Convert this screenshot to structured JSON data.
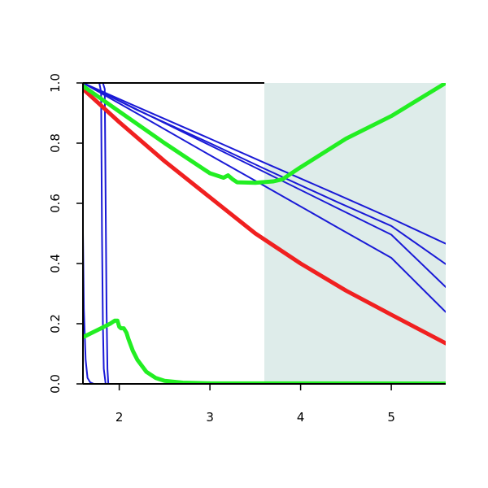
{
  "chart_data": {
    "type": "line",
    "title": "",
    "xlabel": "",
    "ylabel": "",
    "xlim": [
      1.6,
      5.6
    ],
    "ylim": [
      0,
      1
    ],
    "grid": false,
    "x_ticks": [
      2,
      3,
      4,
      5
    ],
    "x_tick_labels": [
      "2",
      "3",
      "4",
      "5"
    ],
    "y_ticks": [
      0,
      0.2,
      0.4,
      0.6,
      0.8,
      1
    ],
    "y_tick_labels": [
      "0.0",
      "0.2",
      "0.4",
      "0.6",
      "0.8",
      "1.0"
    ],
    "shaded_region": {
      "x_start": 3.6,
      "x_end": 5.6,
      "color": "#deecea"
    },
    "colors": {
      "blue": "#1a1ad6",
      "red": "#f02020",
      "green": "#22ee22",
      "axis": "#000000"
    },
    "series": [
      {
        "color_key": "blue",
        "width": 2,
        "x": [
          1.6,
          2.2,
          3.0,
          3.6,
          4.4,
          5.0,
          5.6
        ],
        "y": [
          1.0,
          0.898,
          0.76,
          0.658,
          0.521,
          0.419,
          0.239
        ]
      },
      {
        "color_key": "blue",
        "width": 2,
        "x": [
          1.6,
          2.2,
          3.0,
          3.6,
          4.4,
          5.0,
          5.6
        ],
        "y": [
          1.0,
          0.911,
          0.793,
          0.704,
          0.585,
          0.496,
          0.322
        ]
      },
      {
        "color_key": "blue",
        "width": 2,
        "x": [
          1.6,
          2.2,
          3.0,
          3.6,
          4.4,
          5.0,
          5.6
        ],
        "y": [
          1.0,
          0.91,
          0.8,
          0.715,
          0.605,
          0.525,
          0.398
        ]
      },
      {
        "color_key": "blue",
        "width": 2,
        "x": [
          1.6,
          2.2,
          3.0,
          3.6,
          4.4,
          5.0,
          5.6
        ],
        "y": [
          1.0,
          0.92,
          0.815,
          0.735,
          0.63,
          0.55,
          0.466
        ]
      },
      {
        "color_key": "blue",
        "width": 2,
        "x": [
          1.6,
          1.61,
          1.63,
          1.65,
          1.68,
          1.72,
          1.8,
          2.0,
          5.6
        ],
        "y": [
          0.5,
          0.25,
          0.08,
          0.02,
          0.005,
          0.0,
          0.0,
          0.0,
          0.0
        ]
      },
      {
        "color_key": "blue",
        "width": 2,
        "x": [
          1.6,
          1.7,
          1.78,
          1.8,
          1.81,
          1.82,
          1.83,
          1.85,
          1.9,
          5.6
        ],
        "y": [
          1.0,
          1.0,
          1.0,
          0.97,
          0.5,
          0.2,
          0.05,
          0.0,
          0.0,
          0.0
        ]
      },
      {
        "color_key": "blue",
        "width": 2,
        "x": [
          1.6,
          1.75,
          1.82,
          1.84,
          1.85,
          1.86,
          1.87,
          1.88,
          1.92,
          5.6
        ],
        "y": [
          1.0,
          1.0,
          1.0,
          0.98,
          0.6,
          0.25,
          0.05,
          0.0,
          0.0,
          0.0
        ]
      },
      {
        "color_key": "red",
        "width": 5,
        "x": [
          1.6,
          2.0,
          2.5,
          3.0,
          3.5,
          4.0,
          4.5,
          5.0,
          5.6
        ],
        "y": [
          0.98,
          0.87,
          0.74,
          0.62,
          0.5,
          0.4,
          0.31,
          0.23,
          0.135
        ]
      },
      {
        "color_key": "green",
        "width": 5,
        "x": [
          1.6,
          2.0,
          2.5,
          3.0,
          3.15,
          3.2,
          3.25,
          3.3,
          3.5,
          3.7,
          3.8,
          4.0,
          4.5,
          5.0,
          5.6
        ],
        "y": [
          0.99,
          0.905,
          0.8,
          0.7,
          0.685,
          0.693,
          0.68,
          0.67,
          0.668,
          0.673,
          0.68,
          0.72,
          0.815,
          0.89,
          1.0
        ]
      },
      {
        "color_key": "green",
        "width": 5,
        "x": [
          1.6,
          1.7,
          1.8,
          1.9,
          1.95,
          1.98,
          2.0,
          2.02,
          2.05,
          2.08,
          2.1,
          2.15,
          2.2,
          2.3,
          2.4,
          2.5,
          2.7,
          3.0,
          5.6
        ],
        "y": [
          0.155,
          0.17,
          0.185,
          0.2,
          0.21,
          0.21,
          0.19,
          0.185,
          0.185,
          0.17,
          0.15,
          0.11,
          0.08,
          0.04,
          0.02,
          0.01,
          0.004,
          0.002,
          0.001
        ]
      }
    ]
  }
}
